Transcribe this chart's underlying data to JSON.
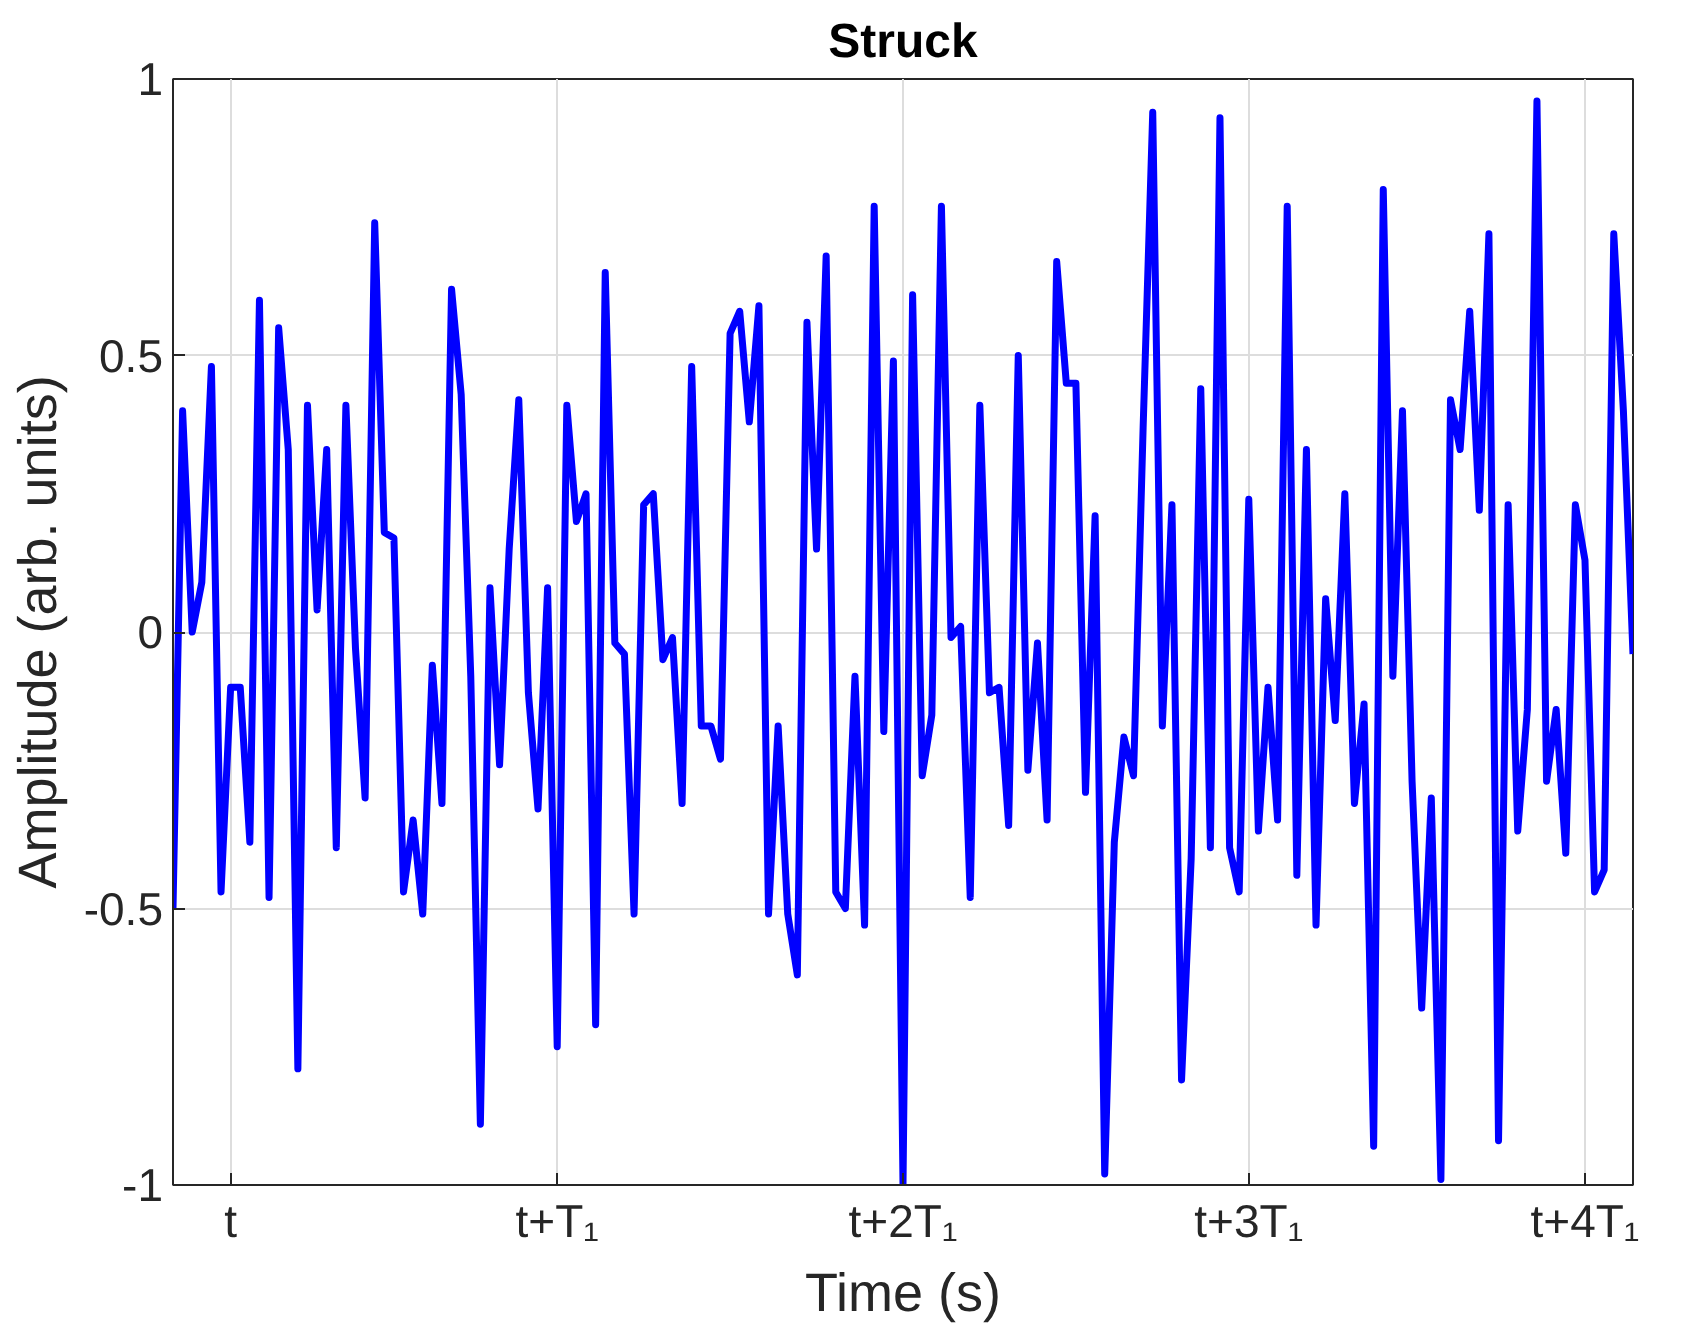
{
  "chart_data": {
    "type": "line",
    "title": "Struck",
    "xlabel": "Time (s)",
    "ylabel": "Amplitude (arb. units)",
    "color": "#0000ff",
    "line_style": "solid",
    "grid": true,
    "ylim": [
      -1,
      1
    ],
    "yticks": [
      -1,
      -0.5,
      0,
      0.5,
      1
    ],
    "categories": [
      null,
      null,
      null,
      null,
      null,
      null,
      "t",
      null,
      null,
      null,
      null,
      null,
      null,
      null,
      null,
      null,
      null,
      null,
      null,
      null,
      null,
      null,
      null,
      null,
      null,
      null,
      null,
      null,
      null,
      null,
      null,
      null,
      null,
      null,
      null,
      null,
      null,
      null,
      null,
      null,
      "t+T₁",
      null,
      null,
      null,
      null,
      null,
      null,
      null,
      null,
      null,
      null,
      null,
      null,
      null,
      null,
      null,
      null,
      null,
      null,
      null,
      null,
      null,
      null,
      null,
      null,
      null,
      null,
      null,
      null,
      null,
      null,
      null,
      null,
      null,
      null,
      null,
      "t+2T₁",
      null,
      null,
      null,
      null,
      null,
      null,
      null,
      null,
      null,
      null,
      null,
      null,
      null,
      null,
      null,
      null,
      null,
      null,
      null,
      null,
      null,
      null,
      null,
      null,
      null,
      null,
      null,
      null,
      null,
      null,
      null,
      null,
      null,
      null,
      null,
      "t+3T₁",
      null,
      null,
      null,
      null,
      null,
      null,
      null,
      null,
      null,
      null,
      null,
      null,
      null,
      null,
      null,
      null,
      null,
      null,
      null,
      null,
      null,
      null,
      null,
      null,
      null,
      null,
      null,
      null,
      null,
      null,
      null,
      null,
      null,
      null,
      "t+4T₁",
      null,
      null,
      null,
      null,
      null
    ],
    "values": [
      -0.5,
      0.4,
      0,
      0.09,
      0.48,
      -0.47,
      -0.1,
      -0.1,
      -0.38,
      0.6,
      -0.48,
      0.55,
      0.33,
      -0.79,
      0.41,
      0.04,
      0.33,
      -0.39,
      0.41,
      -0.03,
      -0.3,
      0.74,
      0.18,
      0.17,
      -0.47,
      -0.34,
      -0.51,
      -0.06,
      -0.31,
      0.62,
      0.43,
      -0.08,
      -0.89,
      0.08,
      -0.24,
      0.15,
      0.42,
      -0.11,
      -0.32,
      0.08,
      -0.75,
      0.41,
      0.2,
      0.25,
      -0.71,
      0.65,
      -0.02,
      -0.04,
      -0.51,
      0.23,
      0.25,
      -0.05,
      -0.01,
      -0.31,
      0.48,
      -0.17,
      -0.17,
      -0.23,
      0.54,
      0.58,
      0.38,
      0.59,
      -0.51,
      -0.17,
      -0.51,
      -0.62,
      0.56,
      0.15,
      0.68,
      -0.47,
      -0.5,
      -0.08,
      -0.53,
      0.77,
      -0.18,
      0.49,
      -1.0,
      0.61,
      -0.26,
      -0.15,
      0.77,
      -0.01,
      0.01,
      -0.48,
      0.41,
      -0.11,
      -0.1,
      -0.35,
      0.5,
      -0.25,
      -0.02,
      -0.34,
      0.67,
      0.45,
      0.45,
      -0.29,
      0.21,
      -0.98,
      -0.38,
      -0.19,
      -0.26,
      0.37,
      0.94,
      -0.17,
      0.23,
      -0.81,
      -0.41,
      0.44,
      -0.39,
      0.93,
      -0.39,
      -0.47,
      0.24,
      -0.36,
      -0.1,
      -0.34,
      0.77,
      -0.44,
      0.33,
      -0.53,
      0.06,
      -0.16,
      0.25,
      -0.31,
      -0.13,
      -0.93,
      0.8,
      -0.08,
      0.4,
      -0.27,
      -0.68,
      -0.3,
      -0.99,
      0.42,
      0.33,
      0.58,
      0.22,
      0.72,
      -0.92,
      0.23,
      -0.36,
      -0.14,
      0.96,
      -0.27,
      -0.14,
      -0.4,
      0.23,
      0.13,
      -0.47,
      -0.43,
      0.72,
      0.4,
      -0.04
    ]
  }
}
